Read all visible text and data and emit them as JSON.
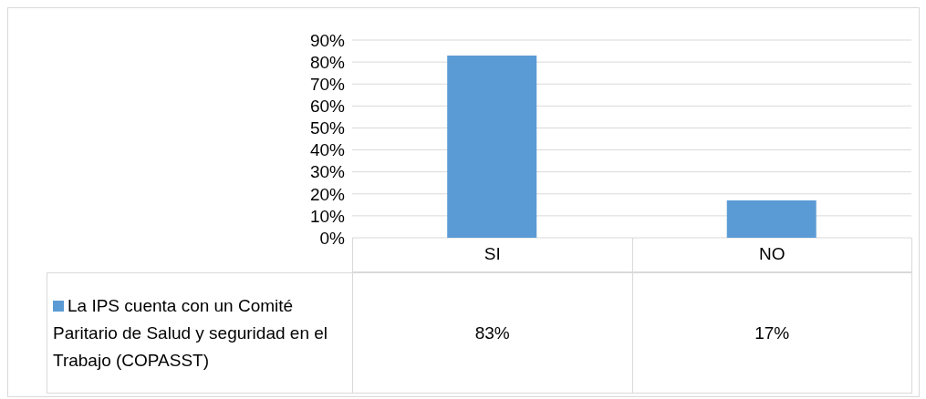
{
  "chart_data": {
    "type": "bar",
    "categories": [
      "SI",
      "NO"
    ],
    "series": [
      {
        "name": "La IPS cuenta con un Comité Paritario de Salud y seguridad en el Trabajo (COPASST)",
        "color": "#5b9bd5",
        "values": [
          83,
          17
        ],
        "value_labels": [
          "83%",
          "17%"
        ]
      }
    ],
    "ylim": [
      0,
      90
    ],
    "yticks": [
      {
        "value": 0,
        "label": "0%"
      },
      {
        "value": 10,
        "label": "10%"
      },
      {
        "value": 20,
        "label": "20%"
      },
      {
        "value": 30,
        "label": "30%"
      },
      {
        "value": 40,
        "label": "40%"
      },
      {
        "value": 50,
        "label": "50%"
      },
      {
        "value": 60,
        "label": "60%"
      },
      {
        "value": 70,
        "label": "70%"
      },
      {
        "value": 80,
        "label": "80%"
      },
      {
        "value": 90,
        "label": "90%"
      }
    ],
    "grid": "y",
    "legend": "bottom left"
  }
}
